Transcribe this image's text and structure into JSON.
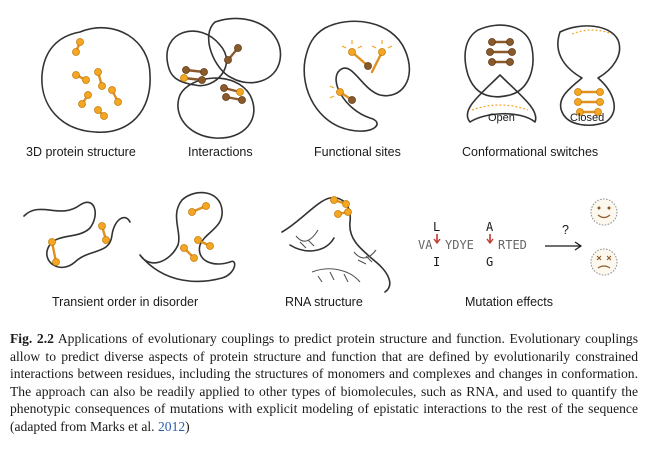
{
  "panels": {
    "protein_structure": "3D protein structure",
    "interactions": "Interactions",
    "functional_sites": "Functional sites",
    "conformational_switches": "Conformational switches",
    "open": "Open",
    "closed": "Closed",
    "transient_order": "Transient order in disorder",
    "rna_structure": "RNA structure",
    "mutation_effects": "Mutation effects"
  },
  "mutation": {
    "top_left": "L",
    "top_right": "A",
    "seq_a": "VA",
    "seq_b": "YDYE",
    "seq_c": "RTED",
    "bottom_left": "I",
    "bottom_right": "G",
    "question": "?"
  },
  "caption": {
    "label": "Fig. 2.2",
    "text": " Applications of evolutionary couplings to predict protein structure and function. Evolutionary couplings allow to predict diverse aspects of protein structure and function that are defined by evolutionarily constrained interactions between residues, including the structures of monomers and complexes and changes in conformation. The approach can also be readily applied to other types of biomolecules, such as RNA, and used to quantify the phenotypic consequences of mutations with explicit modeling of epistatic interactions to the rest of the sequence (adapted from Marks et al. ",
    "year": "2012",
    "close": ")"
  },
  "colors": {
    "residue": "#f5a623",
    "residue_dark": "#8b5a2b",
    "outline": "#333333",
    "link": "#2a5db0"
  }
}
